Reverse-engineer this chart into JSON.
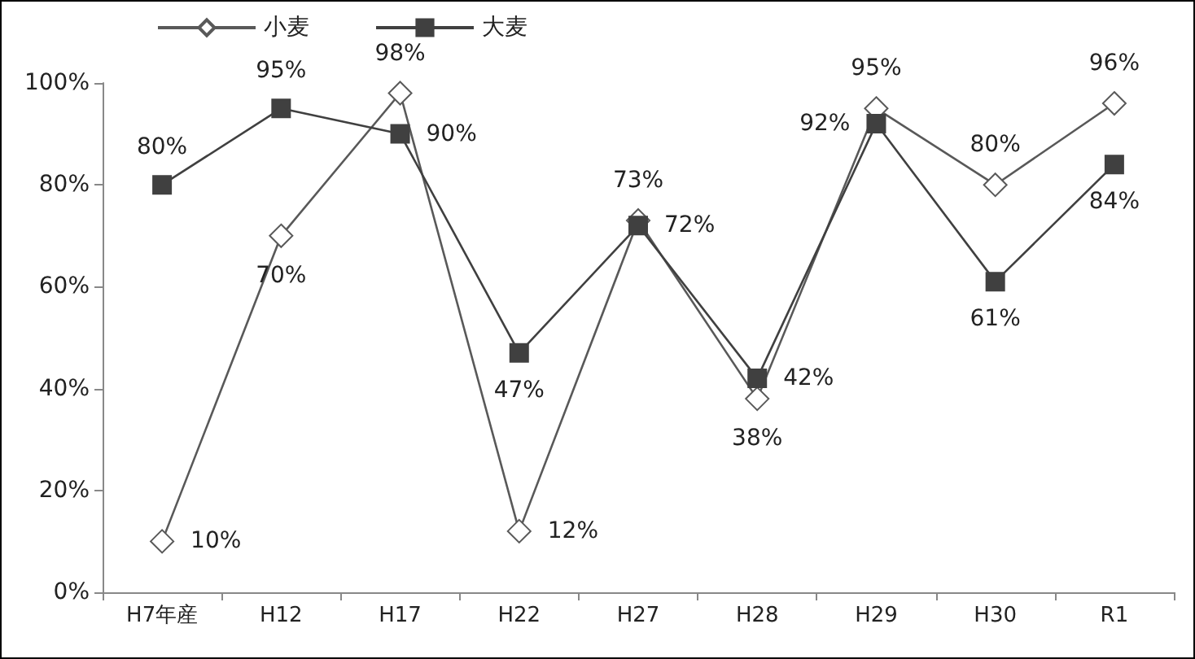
{
  "chart_data": {
    "type": "line",
    "categories": [
      "H7年産",
      "H12",
      "H17",
      "H22",
      "H27",
      "H28",
      "H29",
      "H30",
      "R1"
    ],
    "series": [
      {
        "name": "小麦",
        "color": "#595959",
        "marker": "diamond",
        "values": [
          10,
          70,
          98,
          12,
          73,
          38,
          95,
          80,
          96
        ],
        "value_labels": [
          "10%",
          "70%",
          "98%",
          "12%",
          "73%",
          "38%",
          "95%",
          "80%",
          "96%"
        ]
      },
      {
        "name": "大麦",
        "color": "#404040",
        "marker": "square",
        "values": [
          80,
          95,
          90,
          47,
          72,
          42,
          92,
          61,
          84
        ],
        "value_labels": [
          "80%",
          "95%",
          "90%",
          "47%",
          "72%",
          "42%",
          "92%",
          "61%",
          "84%"
        ]
      }
    ],
    "ylim": [
      0,
      100
    ],
    "yticks": [
      {
        "value": 0,
        "label": "0%"
      },
      {
        "value": 20,
        "label": "20%"
      },
      {
        "value": 40,
        "label": "40%"
      },
      {
        "value": 60,
        "label": "60%"
      },
      {
        "value": 80,
        "label": "80%"
      },
      {
        "value": 100,
        "label": "100%"
      }
    ],
    "legend": "top left",
    "grid": false,
    "line_style": "solid"
  }
}
